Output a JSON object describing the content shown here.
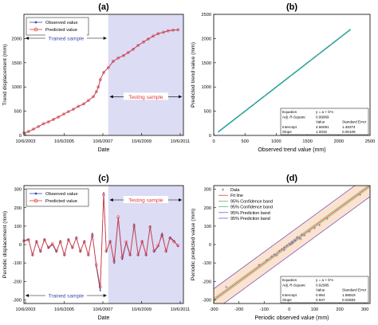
{
  "chart_data": [
    {
      "panel_label": "(a)",
      "type": "line",
      "xlabel": "Date",
      "ylabel": "Trend displacement (mm)",
      "x_ticks": [
        "10/6/2003",
        "10/6/2005",
        "10/6/2007",
        "10/6/2009",
        "10/6/2011"
      ],
      "y_ticks": [
        0,
        500,
        1000,
        1500,
        2000
      ],
      "xlim": [
        2003.77,
        2011.77
      ],
      "ylim": [
        0,
        2500
      ],
      "x": [
        2003.77,
        2004.0,
        2004.25,
        2004.5,
        2004.75,
        2005.0,
        2005.25,
        2005.5,
        2005.77,
        2006.0,
        2006.25,
        2006.5,
        2006.77,
        2007.0,
        2007.25,
        2007.4,
        2007.5,
        2007.6,
        2007.77,
        2008.0,
        2008.25,
        2008.5,
        2008.77,
        2009.0,
        2009.25,
        2009.5,
        2009.77,
        2010.0,
        2010.25,
        2010.5,
        2010.77,
        2011.0,
        2011.25,
        2011.5
      ],
      "series": [
        {
          "name": "Observed value",
          "values": [
            50,
            80,
            130,
            185,
            240,
            280,
            330,
            380,
            440,
            490,
            540,
            600,
            650,
            720,
            800,
            900,
            1000,
            1150,
            1300,
            1400,
            1530,
            1600,
            1650,
            1710,
            1780,
            1860,
            1930,
            1990,
            2050,
            2100,
            2130,
            2160,
            2175,
            2180
          ]
        },
        {
          "name": "Predicted value",
          "values": [
            50,
            80,
            130,
            185,
            240,
            280,
            330,
            380,
            440,
            490,
            540,
            600,
            650,
            720,
            800,
            900,
            1000,
            1150,
            1300,
            1400,
            1530,
            1600,
            1650,
            1710,
            1780,
            1860,
            1930,
            1990,
            2050,
            2100,
            2130,
            2160,
            2175,
            2180
          ]
        }
      ],
      "shaded_from": 2008.0,
      "annotations": [
        "Trained sample",
        "Testing sample"
      ]
    },
    {
      "panel_label": "(b)",
      "type": "scatter",
      "xlabel": "Observed trend value (mm)",
      "ylabel": "Predicted trend value (mm)",
      "x_ticks": [
        0,
        500,
        1000,
        1500,
        2000,
        2500
      ],
      "y_ticks": [
        0,
        500,
        1000,
        1500,
        2000,
        2500
      ],
      "xlim": [
        0,
        2500
      ],
      "ylim": [
        0,
        2500
      ],
      "line": {
        "x": [
          70,
          2190
        ],
        "y": [
          70,
          2190
        ]
      },
      "points_x": [
        430,
        650,
        820,
        1240,
        1560,
        1650,
        1690,
        1880,
        2050
      ],
      "table": {
        "rows": [
          [
            "Equation",
            "y = a + b*x",
            ""
          ],
          [
            "Adj. R-Square",
            "0.99969",
            ""
          ],
          [
            "",
            "Value",
            "Standard Error"
          ],
          [
            "Intercept",
            "4.56091",
            "1.48374"
          ],
          [
            "Slope",
            "1.0032",
            "0.00109"
          ]
        ]
      }
    },
    {
      "panel_label": "(c)",
      "type": "line",
      "xlabel": "Date",
      "ylabel": "Periodic displacement (mm)",
      "x_ticks": [
        "10/6/2003",
        "10/6/2005",
        "10/6/2007",
        "10/6/2009",
        "10/6/2011"
      ],
      "y_ticks": [
        -300,
        -200,
        -100,
        0,
        100,
        200,
        300
      ],
      "xlim": [
        2003.77,
        2011.77
      ],
      "ylim": [
        -320,
        320
      ],
      "x": [
        2003.77,
        2004.0,
        2004.2,
        2004.4,
        2004.6,
        2004.8,
        2005.0,
        2005.2,
        2005.4,
        2005.6,
        2005.8,
        2006.0,
        2006.2,
        2006.4,
        2006.6,
        2006.8,
        2007.0,
        2007.2,
        2007.4,
        2007.6,
        2007.77,
        2007.9,
        2008.1,
        2008.3,
        2008.5,
        2008.7,
        2008.9,
        2009.1,
        2009.3,
        2009.5,
        2009.7,
        2009.9,
        2010.1,
        2010.3,
        2010.5,
        2010.7,
        2010.9,
        2011.1,
        2011.3,
        2011.5
      ],
      "series": [
        {
          "name": "Observed value",
          "values": [
            20,
            30,
            -60,
            20,
            -40,
            30,
            -20,
            0,
            -40,
            20,
            -60,
            30,
            -20,
            40,
            -40,
            20,
            -60,
            60,
            -120,
            -250,
            280,
            -40,
            20,
            -100,
            140,
            -80,
            10,
            -60,
            110,
            -60,
            20,
            -60,
            100,
            -40,
            -10,
            60,
            -40,
            40,
            20,
            -10
          ]
        },
        {
          "name": "Predicted value",
          "values": [
            20,
            25,
            -55,
            15,
            -35,
            25,
            -15,
            5,
            -35,
            15,
            -55,
            25,
            -15,
            35,
            -35,
            15,
            -55,
            50,
            -110,
            -230,
            270,
            -35,
            15,
            -90,
            150,
            -70,
            15,
            -55,
            100,
            -55,
            15,
            -55,
            95,
            -35,
            -5,
            50,
            -35,
            35,
            15,
            -5
          ]
        }
      ],
      "shaded_from": 2008.0,
      "annotations": [
        "Trained sample",
        "Testing sample"
      ]
    },
    {
      "panel_label": "(d)",
      "type": "scatter",
      "xlabel": "Periodic observed value (mm)",
      "ylabel": "Periodic predicted value (mm)",
      "x_ticks": [
        -300,
        -200,
        -100,
        0,
        100,
        200,
        300
      ],
      "y_ticks": [
        -300,
        -200,
        -100,
        0,
        100,
        200,
        300
      ],
      "xlim": [
        -300,
        320
      ],
      "ylim": [
        -320,
        320
      ],
      "legend": [
        "Data",
        "Fit line",
        "95% Confidence band",
        "95% Confidence band",
        "95% Prediction band",
        "95% Prediction band"
      ],
      "points": {
        "x": [
          -250,
          -120,
          -90,
          -60,
          -50,
          -40,
          -30,
          -20,
          -10,
          0,
          5,
          10,
          15,
          20,
          25,
          30,
          40,
          50,
          60,
          80,
          100,
          120,
          150,
          280,
          -70,
          -20,
          10,
          30,
          45
        ],
        "y": [
          -230,
          -110,
          -85,
          -55,
          -60,
          -35,
          -25,
          -30,
          -5,
          5,
          0,
          15,
          10,
          25,
          20,
          35,
          35,
          55,
          50,
          70,
          90,
          105,
          140,
          270,
          -65,
          -15,
          5,
          40,
          30
        ]
      },
      "table": {
        "rows": [
          [
            "Equation",
            "y = a + b*x",
            ""
          ],
          [
            "Adj. R-Square",
            "0.92985",
            ""
          ],
          [
            "",
            "Value",
            "Standard Error"
          ],
          [
            "Intercept",
            "0.954",
            "1.98919"
          ],
          [
            "Slope",
            "0.947",
            "0.02683"
          ]
        ]
      }
    }
  ]
}
